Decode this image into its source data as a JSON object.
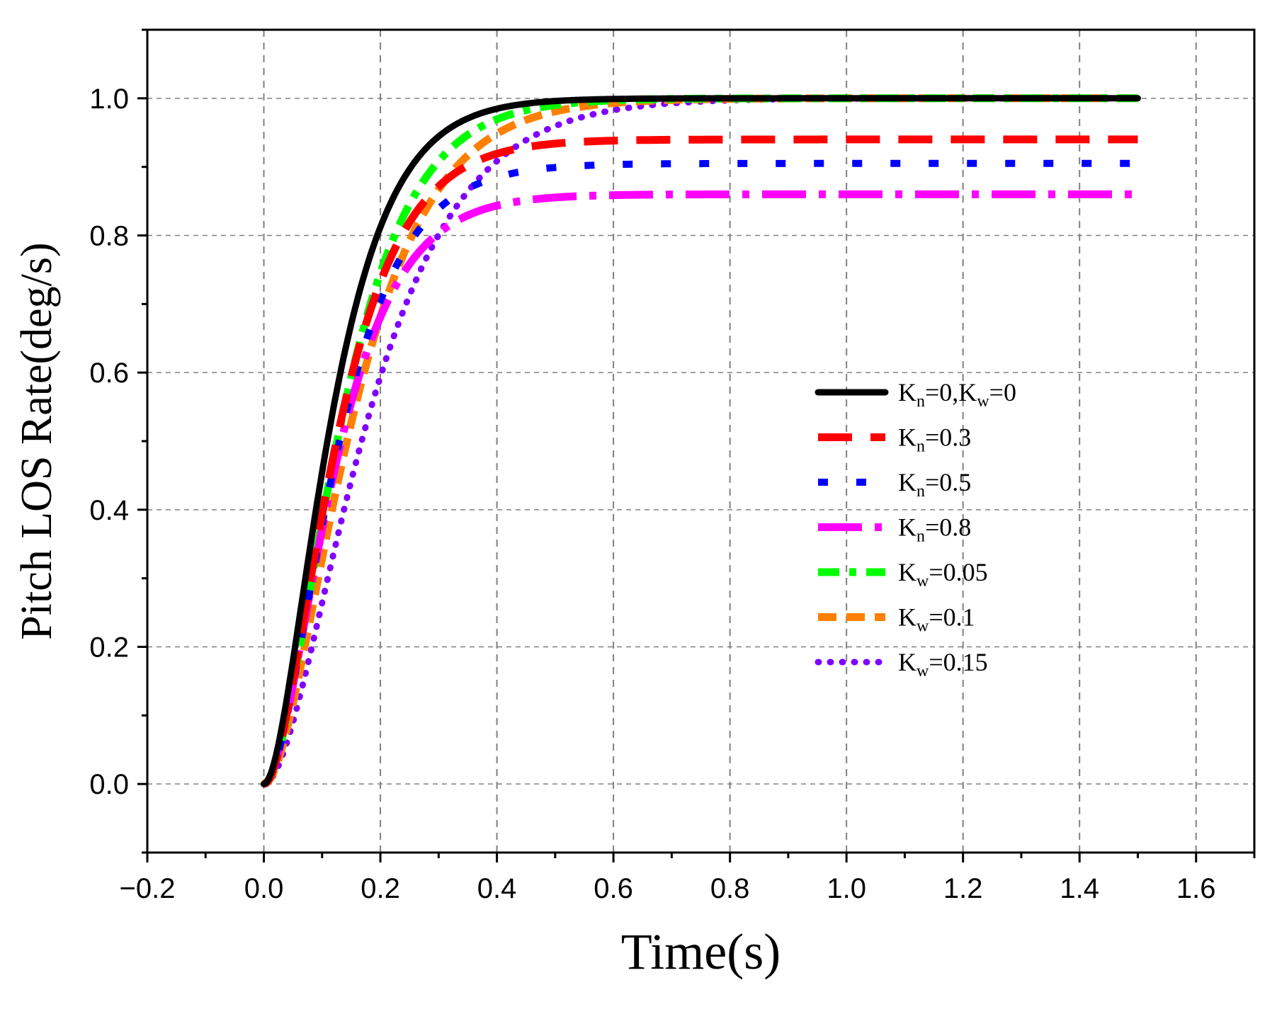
{
  "chart_data": {
    "type": "line",
    "title": "",
    "xlabel": "Time(s)",
    "ylabel": "Pitch LOS Rate(deg/s)",
    "xlim": [
      -0.2,
      1.7
    ],
    "ylim": [
      -0.1,
      1.1
    ],
    "xticks": [
      -0.2,
      0.0,
      0.2,
      0.4,
      0.6,
      0.8,
      1.0,
      1.2,
      1.4,
      1.6
    ],
    "xtick_labels": [
      "−0.2",
      "0.0",
      "0.2",
      "0.4",
      "0.6",
      "0.8",
      "1.0",
      "1.2",
      "1.4",
      "1.6"
    ],
    "yticks": [
      0.0,
      0.2,
      0.4,
      0.6,
      0.8,
      1.0
    ],
    "ytick_labels": [
      "0.0",
      "0.2",
      "0.4",
      "0.6",
      "0.8",
      "1.0"
    ],
    "grid": true,
    "legend_position": "center-right",
    "series": [
      {
        "name": "Kn=0,Kw=0",
        "label_parts": [
          [
            "K",
            ""
          ],
          [
            "n",
            "sub"
          ],
          [
            "=0,K",
            ""
          ],
          [
            "w",
            "sub"
          ],
          [
            "=0",
            ""
          ]
        ],
        "color": "#000000",
        "style": "solid",
        "steady": 1.0,
        "tau": 0.065
      },
      {
        "name": "Kn=0.3",
        "label_parts": [
          [
            "K",
            ""
          ],
          [
            "n",
            "sub"
          ],
          [
            "=0.3",
            ""
          ]
        ],
        "color": "#ff0000",
        "style": "dash",
        "steady": 0.94,
        "tau": 0.07
      },
      {
        "name": "Kn=0.5",
        "label_parts": [
          [
            "K",
            ""
          ],
          [
            "n",
            "sub"
          ],
          [
            "=0.5",
            ""
          ]
        ],
        "color": "#0000ff",
        "style": "dot",
        "steady": 0.905,
        "tau": 0.07
      },
      {
        "name": "Kn=0.8",
        "label_parts": [
          [
            "K",
            ""
          ],
          [
            "n",
            "sub"
          ],
          [
            "=0.8",
            ""
          ]
        ],
        "color": "#ff00ff",
        "style": "dashdot",
        "steady": 0.86,
        "tau": 0.068
      },
      {
        "name": "Kw=0.05",
        "label_parts": [
          [
            "K",
            ""
          ],
          [
            "w",
            "sub"
          ],
          [
            "=0.05",
            ""
          ]
        ],
        "color": "#00ff00",
        "style": "shortdashdot",
        "steady": 1.0,
        "tau": 0.075
      },
      {
        "name": "Kw=0.1",
        "label_parts": [
          [
            "K",
            ""
          ],
          [
            "w",
            "sub"
          ],
          [
            "=0.1",
            ""
          ]
        ],
        "color": "#ff8000",
        "style": "shortdash",
        "steady": 1.0,
        "tau": 0.085
      },
      {
        "name": "Kw=0.15",
        "label_parts": [
          [
            "K",
            ""
          ],
          [
            "w",
            "sub"
          ],
          [
            "=0.15",
            ""
          ]
        ],
        "color": "#8000ff",
        "style": "shortdot",
        "steady": 1.0,
        "tau": 0.1
      }
    ],
    "x_start": 0.0,
    "x_end": 1.5
  }
}
